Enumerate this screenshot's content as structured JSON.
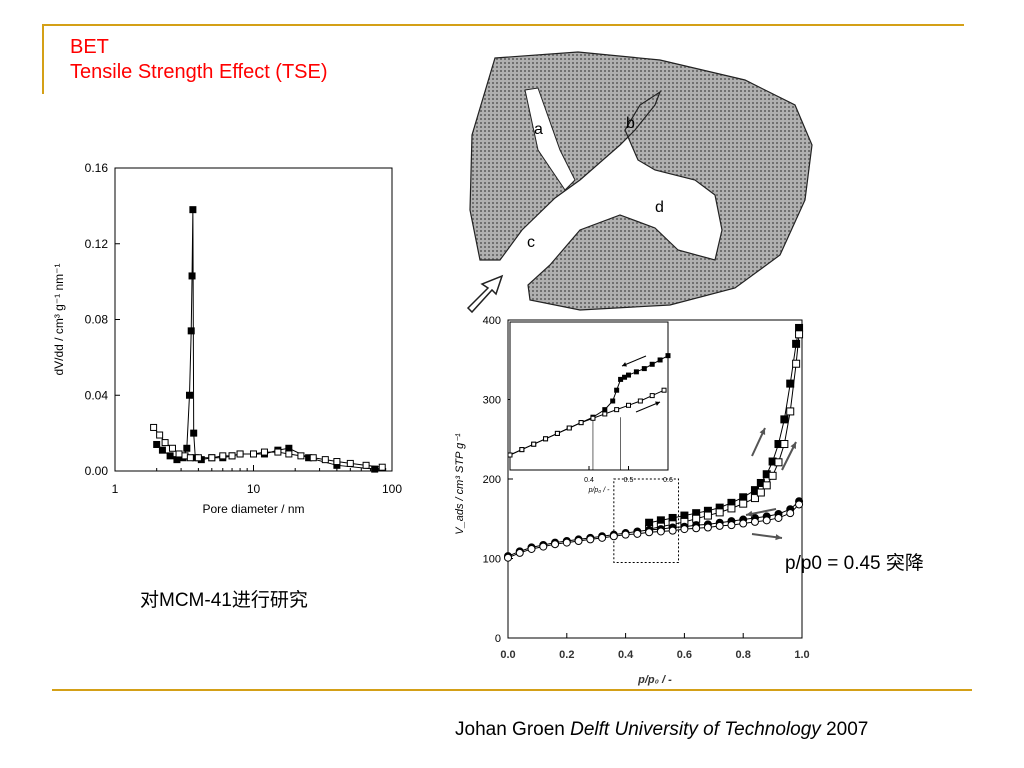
{
  "header": {
    "line1": "BET",
    "line2": "Tensile Strength Effect (TSE)"
  },
  "caption": "对MCM-41进行研究",
  "note": "p/p0 = 0.45 突降",
  "footer": {
    "author": "Johan Groen",
    "institution": "Delft University of Technology",
    "year": "2007"
  },
  "colors": {
    "accent_rule": "#d4a017",
    "title": "#ff0000",
    "pore_fill": "#a8a8a8"
  },
  "diagram": {
    "labels": [
      "a",
      "b",
      "c",
      "d"
    ]
  },
  "chart_data": [
    {
      "type": "scatter",
      "ylabel": "dV/dd / cm³ g⁻¹ nm⁻¹",
      "xlabel": "Pore diameter / nm",
      "x_scale": "log",
      "xlim": [
        1,
        100
      ],
      "ylim": [
        0,
        0.16
      ],
      "x_ticks": [
        "1",
        "10",
        "100"
      ],
      "y_ticks": [
        "0.00",
        "0.04",
        "0.08",
        "0.12",
        "0.16"
      ],
      "series": [
        {
          "marker": "filled-square",
          "x": [
            2.0,
            2.2,
            2.5,
            2.8,
            3.1,
            3.3,
            3.45,
            3.55,
            3.6,
            3.65,
            3.7,
            3.8,
            4.2,
            5,
            6,
            7,
            8,
            10,
            12,
            15,
            18,
            25,
            40,
            75
          ],
          "y": [
            0.014,
            0.011,
            0.008,
            0.006,
            0.007,
            0.012,
            0.04,
            0.074,
            0.103,
            0.138,
            0.02,
            0.007,
            0.006,
            0.007,
            0.007,
            0.008,
            0.009,
            0.009,
            0.009,
            0.011,
            0.012,
            0.007,
            0.003,
            0.001
          ]
        },
        {
          "marker": "open-square",
          "x": [
            1.9,
            2.1,
            2.3,
            2.6,
            2.9,
            3.2,
            3.5,
            4.0,
            5,
            6,
            7,
            8,
            10,
            12,
            15,
            18,
            22,
            27,
            33,
            40,
            50,
            65,
            85
          ],
          "y": [
            0.023,
            0.019,
            0.015,
            0.012,
            0.009,
            0.008,
            0.007,
            0.007,
            0.007,
            0.008,
            0.008,
            0.009,
            0.009,
            0.01,
            0.01,
            0.009,
            0.008,
            0.007,
            0.006,
            0.005,
            0.004,
            0.003,
            0.002
          ]
        }
      ]
    },
    {
      "type": "scatter",
      "ylabel": "V_ads / cm³ STP g⁻¹",
      "xlabel": "p/p₀ / -",
      "xlim": [
        0,
        1
      ],
      "ylim": [
        0,
        400
      ],
      "x_ticks": [
        "0.0",
        "0.2",
        "0.4",
        "0.6",
        "0.8",
        "1.0"
      ],
      "y_ticks": [
        "0",
        "100",
        "200",
        "300",
        "400"
      ],
      "series": [
        {
          "marker": "filled-square",
          "x": [
            0.48,
            0.52,
            0.56,
            0.6,
            0.64,
            0.68,
            0.72,
            0.76,
            0.8,
            0.84,
            0.86,
            0.88,
            0.9,
            0.92,
            0.94,
            0.96,
            0.98,
            0.99
          ],
          "y": [
            145,
            148,
            151,
            154,
            157,
            160,
            164,
            170,
            177,
            186,
            195,
            206,
            222,
            244,
            275,
            320,
            370,
            390
          ]
        },
        {
          "marker": "open-square",
          "x": [
            0.48,
            0.52,
            0.56,
            0.6,
            0.64,
            0.68,
            0.72,
            0.76,
            0.8,
            0.84,
            0.86,
            0.88,
            0.9,
            0.92,
            0.94,
            0.96,
            0.98,
            0.99
          ],
          "y": [
            137,
            140,
            143,
            146,
            150,
            154,
            158,
            163,
            169,
            176,
            183,
            192,
            204,
            221,
            244,
            285,
            345,
            382
          ]
        },
        {
          "marker": "filled-circle",
          "x": [
            0.0,
            0.04,
            0.08,
            0.12,
            0.16,
            0.2,
            0.24,
            0.28,
            0.32,
            0.36,
            0.4,
            0.44,
            0.48,
            0.52,
            0.56,
            0.6,
            0.64,
            0.68,
            0.72,
            0.76,
            0.8,
            0.84,
            0.88,
            0.92,
            0.96,
            0.99
          ],
          "y": [
            103,
            109,
            114,
            117,
            120,
            122,
            124,
            126,
            128,
            130,
            132,
            134,
            136,
            137,
            139,
            140,
            142,
            143,
            145,
            147,
            149,
            151,
            153,
            156,
            162,
            172
          ]
        },
        {
          "marker": "open-circle",
          "x": [
            0.0,
            0.04,
            0.08,
            0.12,
            0.16,
            0.2,
            0.24,
            0.28,
            0.32,
            0.36,
            0.4,
            0.44,
            0.48,
            0.52,
            0.56,
            0.6,
            0.64,
            0.68,
            0.72,
            0.76,
            0.8,
            0.84,
            0.88,
            0.92,
            0.96,
            0.99
          ],
          "y": [
            101,
            107,
            112,
            115,
            118,
            120,
            122,
            124,
            126,
            128,
            130,
            131,
            133,
            134,
            135,
            137,
            138,
            139,
            141,
            142,
            144,
            146,
            148,
            151,
            157,
            168
          ]
        }
      ]
    },
    {
      "type": "line",
      "inset": true,
      "xlabel": "p/p₀ / -",
      "xlim": [
        0.2,
        0.6
      ],
      "x_ticks": [
        "0.4",
        "0.5",
        "0.6"
      ],
      "series": [
        {
          "marker": "filled-square",
          "x": [
            0.2,
            0.23,
            0.26,
            0.29,
            0.32,
            0.35,
            0.38,
            0.41,
            0.44,
            0.46,
            0.47,
            0.48,
            0.49,
            0.5,
            0.52,
            0.54,
            0.56,
            0.58,
            0.6
          ],
          "y": [
            0.0,
            0.05,
            0.1,
            0.15,
            0.2,
            0.25,
            0.3,
            0.35,
            0.42,
            0.5,
            0.6,
            0.7,
            0.72,
            0.74,
            0.77,
            0.8,
            0.84,
            0.88,
            0.92
          ]
        },
        {
          "marker": "open-square",
          "x": [
            0.2,
            0.23,
            0.26,
            0.29,
            0.32,
            0.35,
            0.38,
            0.41,
            0.44,
            0.47,
            0.5,
            0.53,
            0.56,
            0.59
          ],
          "y": [
            0.0,
            0.05,
            0.1,
            0.15,
            0.2,
            0.25,
            0.3,
            0.34,
            0.38,
            0.42,
            0.46,
            0.5,
            0.55,
            0.6
          ]
        }
      ]
    }
  ]
}
